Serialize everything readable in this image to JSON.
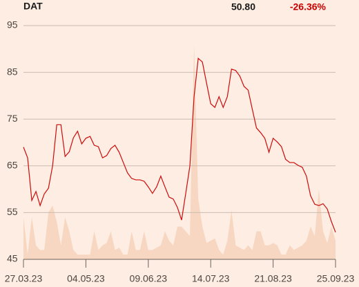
{
  "chart_data": {
    "type": "line",
    "title": "DAT",
    "price": "50.80",
    "change": "-26.36%",
    "categories": [
      "27.03.23",
      null,
      null,
      null,
      null,
      null,
      null,
      null,
      null,
      null,
      null,
      null,
      null,
      null,
      null,
      "04.05.23",
      null,
      null,
      null,
      null,
      null,
      null,
      null,
      null,
      null,
      null,
      null,
      null,
      null,
      null,
      "09.06.23",
      null,
      null,
      null,
      null,
      null,
      null,
      null,
      null,
      null,
      null,
      null,
      null,
      null,
      null,
      "14.07.23",
      null,
      null,
      null,
      null,
      null,
      null,
      null,
      null,
      null,
      null,
      null,
      null,
      null,
      null,
      "21.08.23",
      null,
      null,
      null,
      null,
      null,
      null,
      null,
      null,
      null,
      null,
      null,
      null,
      null,
      null,
      "25.09.23"
    ],
    "series": [
      {
        "type": "area",
        "color": "#f7d7c1",
        "values": [
          54,
          46,
          54,
          48,
          47,
          47,
          55,
          56.5,
          53,
          48,
          54,
          51,
          47,
          46,
          46,
          46,
          46,
          51,
          47,
          48,
          48.5,
          51,
          47,
          47.5,
          46,
          46,
          51,
          47,
          47,
          51,
          47,
          47,
          47.5,
          48,
          51,
          49,
          48,
          52,
          52,
          51,
          50,
          91,
          58,
          52,
          48.5,
          49,
          49.5,
          47,
          46,
          49,
          55.5,
          48,
          47.5,
          47,
          48,
          47,
          51,
          51,
          48,
          48,
          48.5,
          48,
          46,
          46,
          48,
          47,
          47.5,
          48,
          49,
          52,
          50,
          60,
          51,
          48.5,
          52,
          49
        ]
      },
      {
        "type": "line",
        "color": "#cc0a0a",
        "values": [
          69.0,
          66.7,
          57.6,
          59.5,
          56.5,
          59.0,
          60.2,
          65.0,
          73.8,
          73.8,
          67,
          68,
          71,
          72.4,
          69.7,
          70.9,
          71.3,
          69.4,
          69.1,
          66.7,
          67.2,
          68.7,
          69.4,
          67.9,
          65.7,
          63.5,
          62.3,
          62.0,
          62.0,
          61.7,
          60.5,
          59.1,
          60.5,
          62.8,
          60.5,
          58.3,
          57.9,
          56.1,
          53.4,
          59.1,
          65.0,
          79.8,
          88,
          87.2,
          82.7,
          78.3,
          77.5,
          79.8,
          77.5,
          79.8,
          85.7,
          85.4,
          84.2,
          82.0,
          81.2,
          77.1,
          73.1,
          72.1,
          70.9,
          67.9,
          70.9,
          70.1,
          69.1,
          66.4,
          65.7,
          65.7,
          65.1,
          64.7,
          62.8,
          58.6,
          56.8,
          56.5,
          56.9,
          55.8,
          53.1,
          50.8
        ]
      }
    ],
    "ylim": [
      45,
      95
    ],
    "yticks": [
      45,
      55,
      65,
      75,
      85,
      95
    ],
    "grid": true
  }
}
